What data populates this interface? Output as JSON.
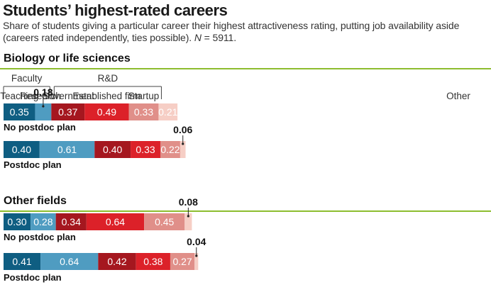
{
  "title": "Students’ highest-rated careers",
  "subtitle": "Share of students giving a particular career their highest attractiveness rating, putting job availability aside (careers rated independently, ties possible).",
  "n_label": "N",
  "n_value": "= 5911.",
  "colors": {
    "Teaching": "#0f5e82",
    "Research": "#4f9cc1",
    "Government": "#a5171f",
    "Established firm": "#dc2129",
    "Startup": "#e08f89",
    "Other": "#f6cec5",
    "section_rule": "#8dbd2f"
  },
  "chart_data": {
    "type": "bar",
    "stacked": true,
    "orientation": "horizontal",
    "group_headers": [
      "Faculty",
      "R&D"
    ],
    "categories": [
      "Teaching",
      "Research",
      "Government",
      "Established firm",
      "Startup",
      "Other"
    ],
    "panels": [
      {
        "name": "Biology or life sciences",
        "rows": [
          {
            "label": "No postdoc plan",
            "values": [
              0.35,
              0.18,
              0.37,
              0.49,
              0.33,
              0.21
            ]
          },
          {
            "label": "Postdoc plan",
            "values": [
              0.4,
              0.61,
              0.4,
              0.33,
              0.22,
              0.06
            ]
          }
        ]
      },
      {
        "name": "Other fields",
        "rows": [
          {
            "label": "No postdoc plan",
            "values": [
              0.3,
              0.28,
              0.34,
              0.64,
              0.45,
              0.08
            ]
          },
          {
            "label": "Postdoc plan",
            "values": [
              0.41,
              0.64,
              0.42,
              0.38,
              0.27,
              0.04
            ]
          }
        ]
      }
    ]
  }
}
